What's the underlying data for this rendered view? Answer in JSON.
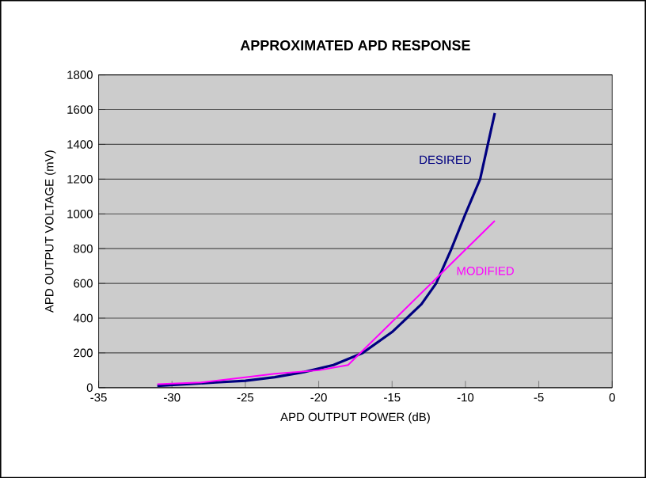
{
  "chart_data": {
    "type": "line",
    "title": "APPROXIMATED APD RESPONSE",
    "xlabel": "APD OUTPUT POWER (dB)",
    "ylabel": "APD OUTPUT VOLTAGE (mV)",
    "xlim": [
      -35,
      0
    ],
    "xticks": [
      -35,
      -30,
      -25,
      -20,
      -15,
      -10,
      -5,
      0
    ],
    "ylim": [
      0,
      1800
    ],
    "yticks": [
      0,
      200,
      400,
      600,
      800,
      1000,
      1200,
      1400,
      1600,
      1800
    ],
    "grid": "y",
    "series": [
      {
        "name": "DESIRED",
        "color": "#000080",
        "x": [
          -31,
          -29,
          -27,
          -25,
          -23,
          -21,
          -19,
          -17,
          -15,
          -13,
          -12,
          -11,
          -10,
          -9,
          -8
        ],
        "values": [
          10,
          20,
          30,
          40,
          60,
          90,
          130,
          200,
          320,
          480,
          600,
          790,
          1000,
          1200,
          1580
        ]
      },
      {
        "name": "MODIFIED",
        "color": "#ff00ff",
        "x": [
          -31,
          -28,
          -25,
          -23,
          -20,
          -18,
          -8
        ],
        "values": [
          20,
          30,
          60,
          80,
          100,
          130,
          960
        ]
      }
    ]
  }
}
